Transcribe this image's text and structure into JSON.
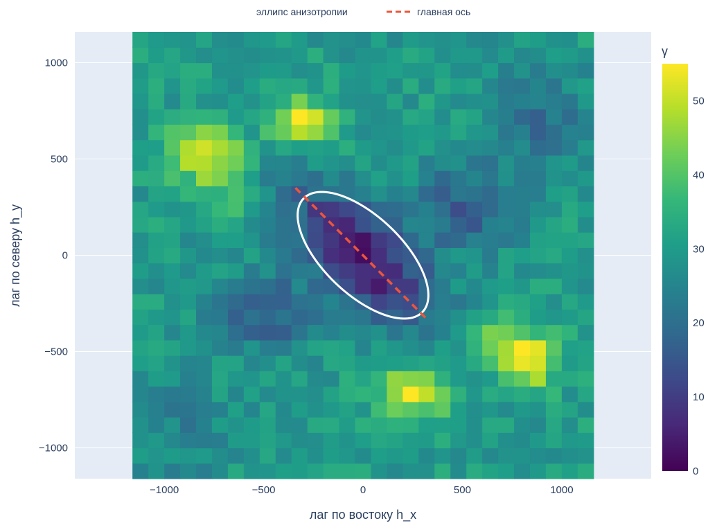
{
  "chart_data": {
    "type": "heatmap",
    "title": "",
    "xlabel": "лаг по востоку h_x",
    "ylabel": "лаг по северу h_y",
    "xlim": [
      -1450,
      1450
    ],
    "ylim": [
      -1160,
      1160
    ],
    "x_ticks": [
      -1000,
      -500,
      0,
      500,
      1000
    ],
    "y_ticks": [
      -1000,
      -500,
      0,
      500,
      1000
    ],
    "x_tick_labels": [
      "−1000",
      "−500",
      "0",
      "500",
      "1000"
    ],
    "y_tick_labels": [
      "−1000",
      "−500",
      "0",
      "500",
      "1000"
    ],
    "heatmap": {
      "x_range": [
        -1160,
        1160
      ],
      "y_range": [
        -1160,
        1160
      ],
      "nx": 29,
      "ny": 29,
      "colorscale": "Viridis",
      "zmin": 0,
      "zmax": 55,
      "description_of_values": "semivariogram map: minimum ~2 at origin, elongated along NW-SE axis; maxima ~55 near (-800,550), (-300,680), (250,-700), (800,-550)"
    },
    "colorbar": {
      "title": "γ",
      "ticks": [
        0,
        10,
        20,
        30,
        40,
        50
      ],
      "tick_labels": [
        "0",
        "10",
        "20",
        "30",
        "40",
        "50"
      ]
    },
    "series": [
      {
        "name": "эллипс анизотропии",
        "type": "line",
        "color": "#ffffff",
        "center": [
          0,
          0
        ],
        "semi_major": 420,
        "semi_minor": 200,
        "angle_deg": 135
      },
      {
        "name": "главная ось",
        "type": "line",
        "dash": "dash",
        "color": "#ef553b",
        "x": [
          -340,
          320
        ],
        "y": [
          350,
          -330
        ]
      }
    ],
    "legend_position": "top-center",
    "grid": true
  },
  "colors": {
    "plot_background": "#e5ecf6",
    "grid": "#ffffff",
    "text": "#2a3f5f"
  }
}
